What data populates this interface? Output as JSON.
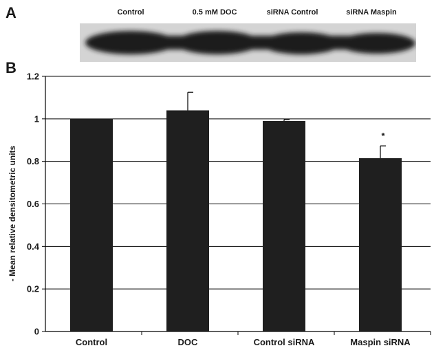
{
  "panel_a_label": "A",
  "panel_b_label": "B",
  "blot": {
    "lane_labels": [
      "Control",
      "0.5 mM DOC",
      "siRNA Control",
      "siRNA Maspin"
    ]
  },
  "chart_data": {
    "type": "bar",
    "categories": [
      "Control",
      "DOC",
      "Control siRNA",
      "Maspin siRNA"
    ],
    "values": [
      1.0,
      1.04,
      0.99,
      0.815
    ],
    "error_up": [
      0.0,
      0.085,
      0.007,
      0.058
    ],
    "title": "",
    "xlabel": "",
    "ylabel": "- Mean relative densitometric units",
    "ylim": [
      0,
      1.2
    ],
    "yticks": [
      0,
      0.2,
      0.4,
      0.6,
      0.8,
      1,
      1.2
    ],
    "ytick_labels": [
      "0",
      "0.2",
      "0.4",
      "0.6",
      "0.8",
      "1",
      "1.2"
    ],
    "grid": true,
    "annotations": [
      {
        "category": "Maspin siRNA",
        "text": "*"
      }
    ],
    "bar_color": "#1f1f1f"
  }
}
